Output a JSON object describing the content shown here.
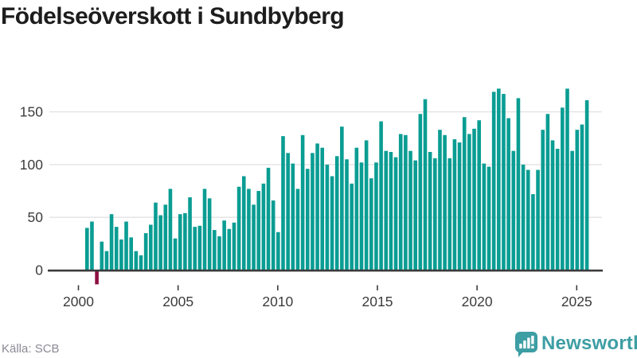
{
  "header": {
    "title": "Födelseöverskott i Sundbyberg"
  },
  "footer": {
    "source": "Källa: SCB",
    "brand": "Newsworthy"
  },
  "colors": {
    "bar": "#0a9d94",
    "negative_bar": "#8e1043",
    "axis": "#3a3a3a",
    "grid": "#e2e2e3",
    "tick_text": "#3c3c3c",
    "title": "#1d1d1d",
    "source_text": "#8b8b96",
    "brand": "#3d9ea3"
  },
  "chart_data": {
    "type": "bar",
    "title": "Födelseöverskott i Sundbyberg",
    "x_start": "2000 Q1",
    "frequency": "quarterly",
    "x_tick_labels": [
      "2000",
      "2005",
      "2010",
      "2015",
      "2020",
      "2025"
    ],
    "y_ticks": [
      0,
      50,
      100,
      150
    ],
    "y_tick_labels": [
      "0",
      "50",
      "100",
      "150"
    ],
    "ylim": [
      -20,
      180
    ],
    "grid": true,
    "legend": false,
    "values": [
      40,
      46,
      -12,
      27,
      18,
      53,
      41,
      29,
      46,
      31,
      18,
      14,
      35,
      43,
      64,
      52,
      62,
      77,
      30,
      53,
      54,
      69,
      41,
      42,
      77,
      68,
      38,
      32,
      47,
      39,
      45,
      79,
      89,
      77,
      62,
      75,
      82,
      97,
      66,
      36,
      127,
      111,
      101,
      77,
      128,
      96,
      111,
      120,
      116,
      100,
      89,
      108,
      136,
      105,
      82,
      116,
      102,
      123,
      87,
      102,
      141,
      113,
      112,
      107,
      129,
      128,
      113,
      104,
      148,
      162,
      112,
      106,
      133,
      128,
      106,
      124,
      121,
      145,
      129,
      134,
      142,
      101,
      98,
      169,
      172,
      167,
      144,
      113,
      163,
      100,
      95,
      72,
      95,
      133,
      148,
      123,
      115,
      154,
      172,
      113,
      133,
      138,
      161
    ]
  }
}
